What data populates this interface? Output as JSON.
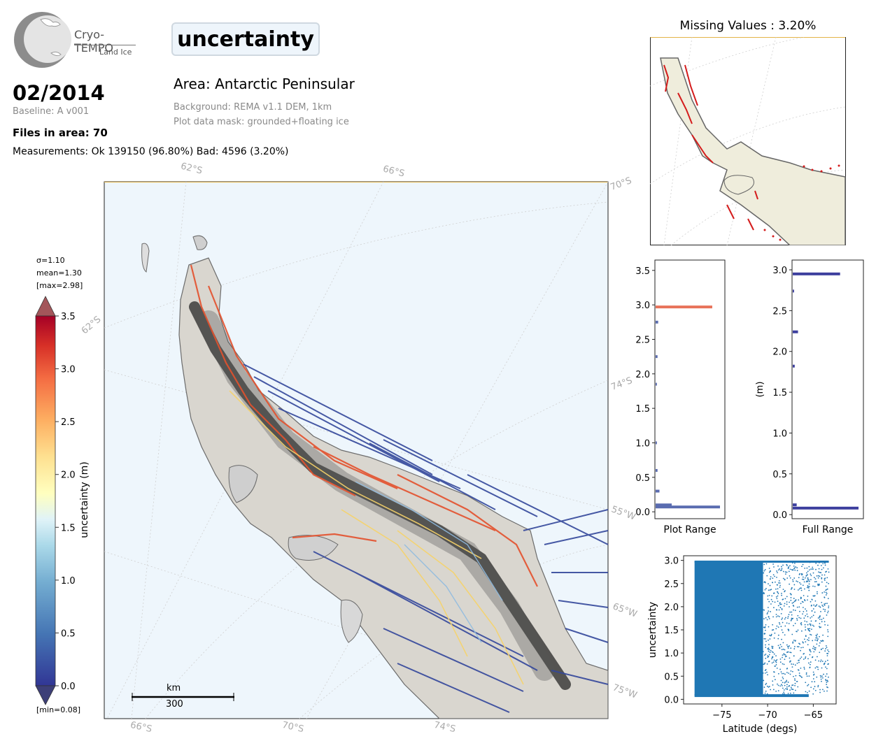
{
  "product": {
    "name": "Cryo-TEMPO",
    "subtitle": "Land Ice"
  },
  "variable_title": "uncertainty",
  "date": "02/2014",
  "baseline": "Baseline: A v001",
  "area": "Area: Antarctic Peninsular",
  "background": "Background: REMA v1.1 DEM, 1km",
  "mask": "Plot data mask: grounded+floating ice",
  "files": "Files in area: 70",
  "measurements": "Measurements: Ok 139150 (96.80%) Bad: 4596 (3.20%)",
  "missing": "Missing Values : 3.20%",
  "colorbar": {
    "stats": [
      "σ=1.10",
      "mean=1.30",
      "[max=2.98]"
    ],
    "min_label": "[min=0.08]",
    "label": "uncertainty (m)",
    "ticks": [
      "0.0",
      "0.5",
      "1.0",
      "1.5",
      "2.0",
      "2.5",
      "3.0",
      "3.5"
    ]
  },
  "map": {
    "top_labels": [
      "62°S",
      "66°S",
      "70°S"
    ],
    "left_labels": [
      "62°S"
    ],
    "right_labels": [
      "74°S",
      "55°W",
      "65°W",
      "75°W"
    ],
    "bottom_labels": [
      "66°S",
      "70°S",
      "74°S"
    ],
    "scale_unit": "km",
    "scale_value": "300"
  },
  "colors": {
    "map_bg": "#eef6fc",
    "colorbar_low": "#313695",
    "colorbar_high": "#a50026",
    "scatter": "#1f77b4",
    "hist_plot": "#5a6cb0",
    "hist_full": "#3d3f9e",
    "hist_peak": "#e8735a"
  },
  "chart_data": [
    {
      "type": "bar",
      "name": "hist-plot-range",
      "orientation": "horizontal",
      "xlabel": "Plot Range",
      "ylim": [
        -0.1,
        3.65
      ],
      "yticks": [
        "0.0",
        "0.5",
        "1.0",
        "1.5",
        "2.0",
        "2.5",
        "3.0",
        "3.5"
      ],
      "bins": [
        0.07,
        0.1,
        0.3,
        0.6,
        1.0,
        1.85,
        2.25,
        2.75,
        2.97
      ],
      "values": [
        1.0,
        0.25,
        0.06,
        0.03,
        0.02,
        0.02,
        0.03,
        0.04,
        0.88
      ]
    },
    {
      "type": "bar",
      "name": "hist-full-range",
      "orientation": "horizontal",
      "xlabel": "Full Range",
      "ylabel": "(m)",
      "ylim": [
        -0.05,
        3.12
      ],
      "yticks": [
        "0.0",
        "0.5",
        "1.0",
        "1.5",
        "2.0",
        "2.5",
        "3.0"
      ],
      "bins": [
        0.08,
        0.12,
        1.82,
        2.24,
        2.74,
        2.95
      ],
      "values": [
        1.0,
        0.06,
        0.03,
        0.08,
        0.02,
        0.72
      ]
    },
    {
      "type": "scatter",
      "name": "uncertainty-vs-latitude",
      "xlabel": "Latitude (degs)",
      "ylabel": "uncertainty",
      "xlim": [
        -79.2,
        -62.5
      ],
      "ylim": [
        -0.1,
        3.1
      ],
      "xticks": [
        "−75",
        "−70",
        "−65"
      ],
      "yticks": [
        "0.0",
        "0.5",
        "1.0",
        "1.5",
        "2.0",
        "2.5",
        "3.0"
      ],
      "x_range": [
        -78.0,
        -63.3
      ],
      "y_range": [
        0.08,
        2.98
      ],
      "dense_x_range": [
        -78.0,
        -70.5
      ],
      "point_count": 139150
    }
  ]
}
